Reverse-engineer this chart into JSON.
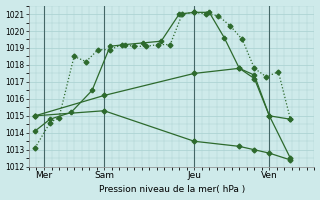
{
  "bg_color": "#ceeaea",
  "grid_color": "#a8d0d0",
  "line_color": "#2d6a2d",
  "xlabel": "Pression niveau de la mer( hPa )",
  "ylim": [
    1012,
    1021.5
  ],
  "xlim": [
    0,
    9.5
  ],
  "yticks": [
    1012,
    1013,
    1014,
    1015,
    1016,
    1017,
    1018,
    1019,
    1020,
    1021
  ],
  "xtick_labels": [
    "Mer",
    "Sam",
    "Jeu",
    "Ven"
  ],
  "xtick_positions": [
    0.5,
    2.5,
    5.5,
    8.0
  ],
  "vline_positions": [
    0.5,
    2.5,
    5.5,
    8.0
  ],
  "lines": [
    {
      "x": [
        0.2,
        0.7,
        1.0,
        1.5,
        1.9,
        2.3,
        2.7,
        3.1,
        3.5,
        3.9,
        4.3,
        4.7,
        5.1,
        5.5,
        5.9,
        6.3,
        6.7,
        7.1,
        7.5,
        7.9,
        8.3,
        8.7
      ],
      "y": [
        1013.1,
        1014.6,
        1014.9,
        1018.5,
        1018.2,
        1018.9,
        1018.9,
        1019.2,
        1019.1,
        1019.1,
        1019.2,
        1019.2,
        1021.0,
        1021.1,
        1021.0,
        1020.9,
        1020.3,
        1019.5,
        1017.8,
        1017.3,
        1017.6,
        1014.8
      ],
      "marker": "D",
      "markersize": 2.5,
      "linestyle": ":"
    },
    {
      "x": [
        0.2,
        0.7,
        1.4,
        2.1,
        2.7,
        3.2,
        3.8,
        4.4,
        5.0,
        5.5,
        6.0,
        6.5,
        7.0,
        7.5,
        8.0,
        8.7
      ],
      "y": [
        1014.1,
        1014.8,
        1015.2,
        1016.5,
        1019.1,
        1019.2,
        1019.3,
        1019.4,
        1021.0,
        1021.1,
        1021.1,
        1019.6,
        1017.8,
        1017.4,
        1015.0,
        1014.8
      ],
      "marker": "P",
      "markersize": 3,
      "linestyle": "-"
    },
    {
      "x": [
        0.2,
        2.5,
        5.5,
        7.0,
        7.5,
        8.0,
        8.7
      ],
      "y": [
        1015.0,
        1016.2,
        1017.5,
        1017.8,
        1017.2,
        1015.0,
        1012.5
      ],
      "marker": "D",
      "markersize": 2.5,
      "linestyle": "-"
    },
    {
      "x": [
        0.2,
        2.5,
        5.5,
        7.0,
        7.5,
        8.0,
        8.7
      ],
      "y": [
        1015.0,
        1015.3,
        1013.5,
        1013.2,
        1013.0,
        1012.8,
        1012.4
      ],
      "marker": "D",
      "markersize": 2.5,
      "linestyle": "-"
    }
  ]
}
